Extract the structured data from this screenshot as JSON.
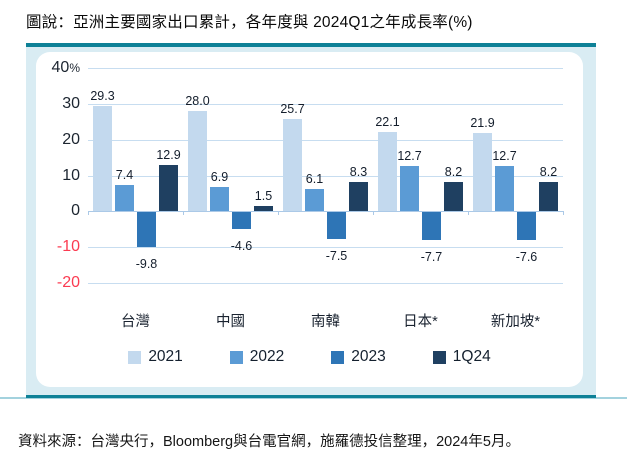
{
  "header": {
    "title": "圖說：亞洲主要國家出口累計，各年度與 2024Q1之年成長率(%)"
  },
  "footer": {
    "source": "資料來源：台灣央行，Bloomberg與台電官網，施羅德投信整理，2024年5月。"
  },
  "colors": {
    "rule_teal": "#0e8197",
    "panel_bg": "#d9ecf3",
    "gridline": "#c7ddf0",
    "negative_tick_red": "#fb3b51",
    "series_2021": "#c3d9ee",
    "series_2022": "#5b9bd5",
    "series_2023": "#2e75b6",
    "series_1q24": "#1f4061"
  },
  "chart_data": {
    "type": "bar",
    "title": "亞洲主要國家出口累計，各年度與 2024Q1之年成長率(%)",
    "categories": [
      "台灣",
      "中國",
      "南韓",
      "日本*",
      "新加坡*"
    ],
    "series": [
      {
        "name": "2021",
        "color": "#c3d9ee",
        "values": [
          29.3,
          28.0,
          25.7,
          22.1,
          21.9
        ]
      },
      {
        "name": "2022",
        "color": "#5b9bd5",
        "values": [
          7.4,
          6.9,
          6.1,
          12.7,
          12.7
        ]
      },
      {
        "name": "2023",
        "color": "#2e75b6",
        "values": [
          -9.8,
          -4.6,
          -7.5,
          -7.7,
          -7.6
        ]
      },
      {
        "name": "1Q24",
        "color": "#1f4061",
        "values": [
          12.9,
          1.5,
          8.3,
          8.2,
          8.2
        ]
      }
    ],
    "y_ticks": [
      40,
      30,
      20,
      10,
      0,
      -10,
      -20
    ],
    "ylim": [
      -20,
      40
    ],
    "y_unit": "%",
    "xlabel": "",
    "ylabel": "",
    "grid": true,
    "legend_position": "bottom"
  }
}
